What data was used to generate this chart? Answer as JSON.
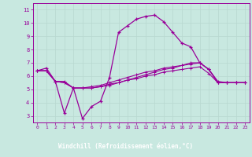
{
  "xlabel": "Windchill (Refroidissement éolien,°C)",
  "bg_color": "#c8e8e0",
  "axis_bar_color": "#993399",
  "line_color": "#990099",
  "xlim": [
    -0.5,
    23.5
  ],
  "ylim": [
    2.5,
    11.5
  ],
  "xticks": [
    0,
    1,
    2,
    3,
    4,
    5,
    6,
    7,
    8,
    9,
    10,
    11,
    12,
    13,
    14,
    15,
    16,
    17,
    18,
    19,
    20,
    21,
    22,
    23
  ],
  "yticks": [
    3,
    4,
    5,
    6,
    7,
    8,
    9,
    10,
    11
  ],
  "line1_x": [
    0,
    1,
    2,
    3,
    4,
    5,
    6,
    7,
    8,
    9,
    10,
    11,
    12,
    13,
    14,
    15,
    16,
    17,
    18,
    19,
    20,
    21,
    22,
    23
  ],
  "line1_y": [
    6.4,
    6.6,
    5.6,
    3.2,
    5.1,
    2.8,
    3.7,
    4.1,
    5.9,
    9.3,
    9.8,
    10.3,
    10.5,
    10.6,
    10.1,
    9.3,
    8.5,
    8.2,
    7.0,
    6.5,
    5.5,
    5.5,
    5.5,
    5.5
  ],
  "line2_x": [
    0,
    1,
    2,
    3,
    4,
    5,
    6,
    7,
    8,
    9,
    10,
    11,
    12,
    13,
    14,
    15,
    16,
    17,
    18,
    19,
    20,
    21,
    22,
    23
  ],
  "line2_y": [
    6.4,
    6.4,
    5.6,
    5.6,
    5.1,
    5.1,
    5.1,
    5.2,
    5.3,
    5.5,
    5.7,
    5.9,
    6.1,
    6.3,
    6.5,
    6.6,
    6.8,
    7.0,
    7.0,
    6.5,
    5.5,
    5.5,
    5.5,
    5.5
  ],
  "line3_x": [
    0,
    1,
    2,
    3,
    4,
    5,
    6,
    7,
    8,
    9,
    10,
    11,
    12,
    13,
    14,
    15,
    16,
    17,
    18,
    19,
    20,
    21,
    22,
    23
  ],
  "line3_y": [
    6.4,
    6.4,
    5.6,
    5.5,
    5.1,
    5.1,
    5.2,
    5.3,
    5.5,
    5.7,
    5.9,
    6.1,
    6.3,
    6.4,
    6.6,
    6.7,
    6.8,
    6.9,
    7.0,
    6.5,
    5.6,
    5.5,
    5.5,
    5.5
  ],
  "line4_x": [
    0,
    1,
    2,
    3,
    4,
    5,
    6,
    7,
    8,
    9,
    10,
    11,
    12,
    13,
    14,
    15,
    16,
    17,
    18,
    19,
    20,
    21,
    22,
    23
  ],
  "line4_y": [
    6.4,
    6.4,
    5.6,
    5.5,
    5.1,
    5.1,
    5.1,
    5.2,
    5.4,
    5.5,
    5.7,
    5.8,
    6.0,
    6.1,
    6.3,
    6.4,
    6.5,
    6.6,
    6.7,
    6.2,
    5.5,
    5.5,
    5.5,
    5.5
  ]
}
